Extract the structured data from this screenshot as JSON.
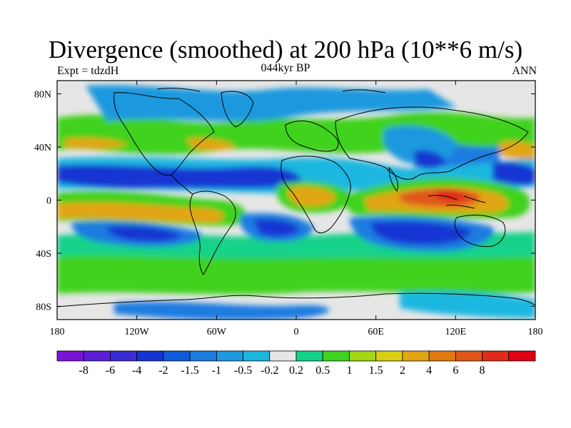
{
  "header": {
    "title": "Divergence (smoothed) at 200 hPa (10**6 m/s)",
    "left_label": "Expt = tdzdH",
    "center_label": "044kyr BP",
    "right_label": "ANN"
  },
  "map": {
    "lon_range": [
      -180,
      180
    ],
    "lat_range": [
      -90,
      90
    ],
    "x_ticks": [
      {
        "lon": -180,
        "label": "180"
      },
      {
        "lon": -120,
        "label": "120W"
      },
      {
        "lon": -60,
        "label": "60W"
      },
      {
        "lon": 0,
        "label": "0"
      },
      {
        "lon": 60,
        "label": "60E"
      },
      {
        "lon": 120,
        "label": "120E"
      },
      {
        "lon": 180,
        "label": "180"
      }
    ],
    "y_ticks": [
      {
        "lat": 80,
        "label": "80N"
      },
      {
        "lat": 40,
        "label": "40N"
      },
      {
        "lat": 0,
        "label": "0"
      },
      {
        "lat": -40,
        "label": "40S"
      },
      {
        "lat": -80,
        "label": "80S"
      }
    ]
  },
  "colorbar": {
    "colors": [
      "#7a12d6",
      "#5b1fd2",
      "#3a2bd4",
      "#1534d2",
      "#0f5ad8",
      "#1b7ce0",
      "#1f99de",
      "#1bb7e0",
      "#e6e6e6",
      "#12d28a",
      "#3fd21f",
      "#a2d613",
      "#d8cf12",
      "#e2a514",
      "#e07a0f",
      "#e0561a",
      "#e02a1c",
      "#e00012"
    ],
    "labels": [
      "-8",
      "-6",
      "-4",
      "-2",
      "-1.5",
      "-1",
      "-0.5",
      "-0.2",
      "0.2",
      "0.5",
      "1",
      "1.5",
      "2",
      "4",
      "6",
      "8"
    ]
  },
  "field_colors": {
    "neutral": "#e6e6e6",
    "weak_pos": "#12d28a",
    "mid_pos": "#3fd21f",
    "strong_pos": "#e2a514",
    "max_pos": "#e0561a",
    "weak_neg": "#1bb7e0",
    "mid_neg": "#1b7ce0",
    "strong_neg": "#1534d2"
  }
}
